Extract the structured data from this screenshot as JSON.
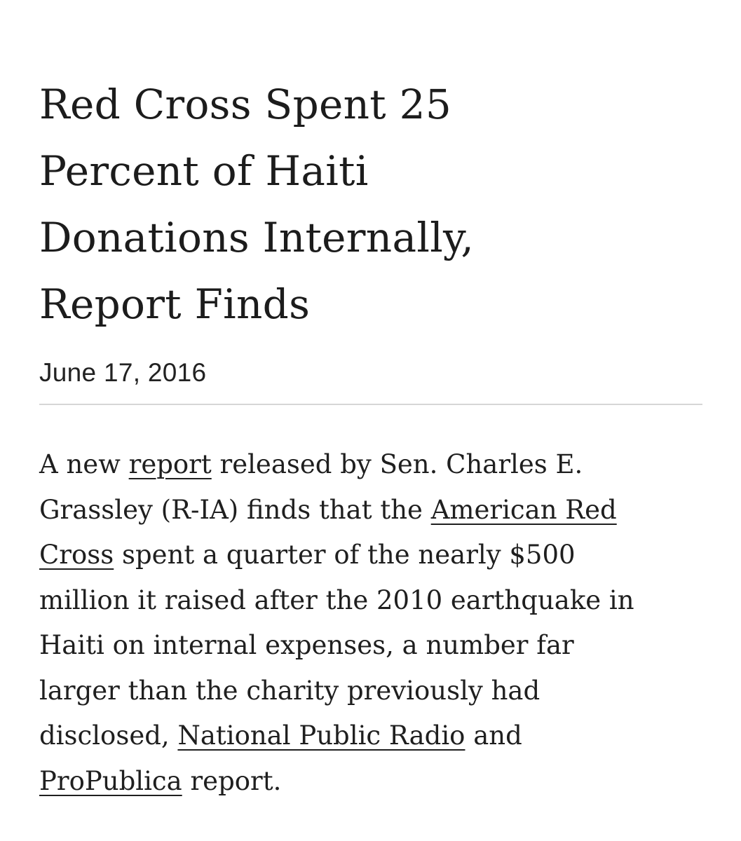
{
  "article": {
    "headline_lines": [
      "Red Cross Spent 25",
      "Percent of Haiti",
      "Donations Internally,",
      "Report Finds"
    ],
    "date": "June 17, 2016",
    "body": {
      "l1_a": "A new ",
      "link_report": "report",
      "l1_b": " released by Sen. Charles E.",
      "l2_a": "Grassley (R-IA) finds that the ",
      "link_arc_1": "American Red",
      "link_arc_2": "Cross",
      "l3_b": " spent a quarter of the nearly $500",
      "l4": "million it raised after the 2010 earthquake in",
      "l5": "Haiti on internal expenses, a number far",
      "l6": "larger than the charity previously had",
      "l7_a": "disclosed, ",
      "link_npr": "National Public Radio",
      "l7_b": " and",
      "link_propublica": "ProPublica",
      "l8_b": " report."
    }
  }
}
